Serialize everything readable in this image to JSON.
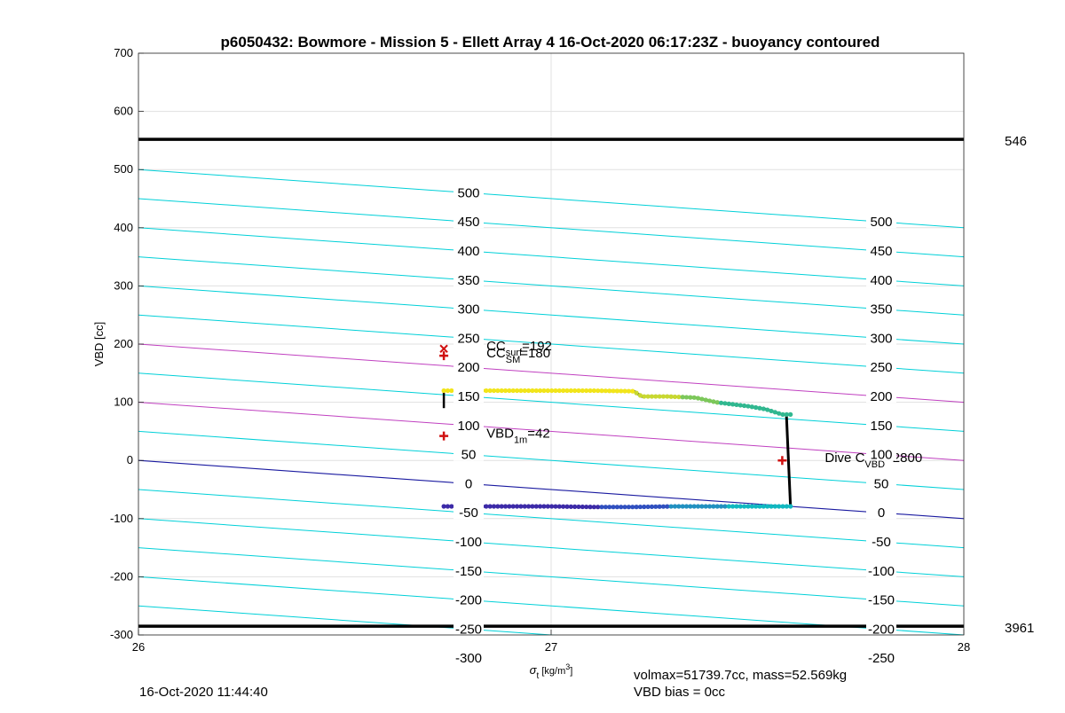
{
  "chart_data": {
    "type": "scatter",
    "title": "p6050432: Bowmore - Mission 5 - Ellett Array 4 16-Oct-2020 06:17:23Z - buoyancy contoured",
    "xlabel_symbol": "σ",
    "xlabel_sub": "t",
    "xlabel_unit": "[kg/m",
    "xlabel_sup": "3",
    "xlabel_close": "]",
    "ylabel": "VBD [cc]",
    "xlim": [
      26,
      28
    ],
    "ylim": [
      -300,
      700
    ],
    "x_ticks": [
      "26",
      "27",
      "28"
    ],
    "y_ticks": [
      "-300",
      "-200",
      "-100",
      "0",
      "100",
      "200",
      "300",
      "400",
      "500",
      "600",
      "700"
    ],
    "grid": true,
    "hlines": [
      {
        "y": 552,
        "label": "546",
        "color": "#000000"
      },
      {
        "y": -285,
        "label": "3961",
        "color": "#000000"
      }
    ],
    "contour_levels": [
      -300,
      -250,
      -200,
      -150,
      -100,
      -50,
      0,
      50,
      100,
      150,
      200,
      250,
      300,
      350,
      400,
      450,
      500
    ],
    "contour_labels_left": [
      "500",
      "450",
      "400",
      "350",
      "300",
      "250",
      "200",
      "150",
      "100",
      "50",
      "0",
      "-50",
      "-100",
      "-150",
      "-200",
      "-250",
      "-300"
    ],
    "contour_labels_right": [
      "500",
      "450",
      "400",
      "350",
      "300",
      "250",
      "200",
      "150",
      "100",
      "50",
      "0",
      "-50",
      "-100",
      "-150",
      "-200",
      "-250"
    ],
    "contour_slope_cc_per_unit": -50,
    "contour_colors": {
      "default": "#00d0d8",
      "magenta": "#c040c0",
      "zero": "#1a1aa0"
    },
    "magenta_levels": [
      100,
      200
    ],
    "zero_level": 0,
    "markers": [
      {
        "x": 26.74,
        "y": 192,
        "symbol": "x",
        "color": "#d01010",
        "label_main": "CC",
        "label_sub": "surf",
        "label_tail": "=192"
      },
      {
        "x": 26.74,
        "y": 180,
        "symbol": "+",
        "color": "#d01010",
        "label_main": "CC",
        "label_sub": "SM",
        "label_tail": "=180"
      },
      {
        "x": 26.74,
        "y": 42,
        "symbol": "+",
        "color": "#d01010",
        "label_main": "VBD",
        "label_sub": "1m",
        "label_tail": "=42"
      },
      {
        "x": 27.56,
        "y": 0,
        "symbol": "+",
        "color": "#d01010",
        "label_main": "Dive C",
        "label_sub": "VBD",
        "label_tail": "=2800"
      }
    ],
    "profile_upper": [
      [
        26.74,
        120
      ],
      [
        26.8,
        120
      ],
      [
        26.9,
        120
      ],
      [
        27.0,
        120
      ],
      [
        27.1,
        120
      ],
      [
        27.2,
        119
      ],
      [
        27.22,
        110
      ],
      [
        27.28,
        110
      ],
      [
        27.35,
        108
      ],
      [
        27.4,
        100
      ],
      [
        27.48,
        93
      ],
      [
        27.52,
        88
      ],
      [
        27.56,
        79
      ],
      [
        27.58,
        79
      ]
    ],
    "profile_lower": [
      [
        26.74,
        -79
      ],
      [
        26.85,
        -79
      ],
      [
        27.0,
        -79
      ],
      [
        27.1,
        -80
      ],
      [
        27.2,
        -80
      ],
      [
        27.3,
        -79
      ],
      [
        27.4,
        -79
      ],
      [
        27.5,
        -79
      ],
      [
        27.58,
        -79
      ]
    ],
    "profile_start": [
      [
        26.74,
        90
      ],
      [
        26.74,
        120
      ]
    ],
    "profile_end": [
      [
        27.57,
        79
      ],
      [
        27.58,
        -79
      ]
    ]
  },
  "footer": {
    "timestamp": "16-Oct-2020 11:44:40",
    "volmax_mass": "volmax=51739.7cc, mass=52.569kg",
    "vbd_bias": "VBD bias = 0cc"
  }
}
